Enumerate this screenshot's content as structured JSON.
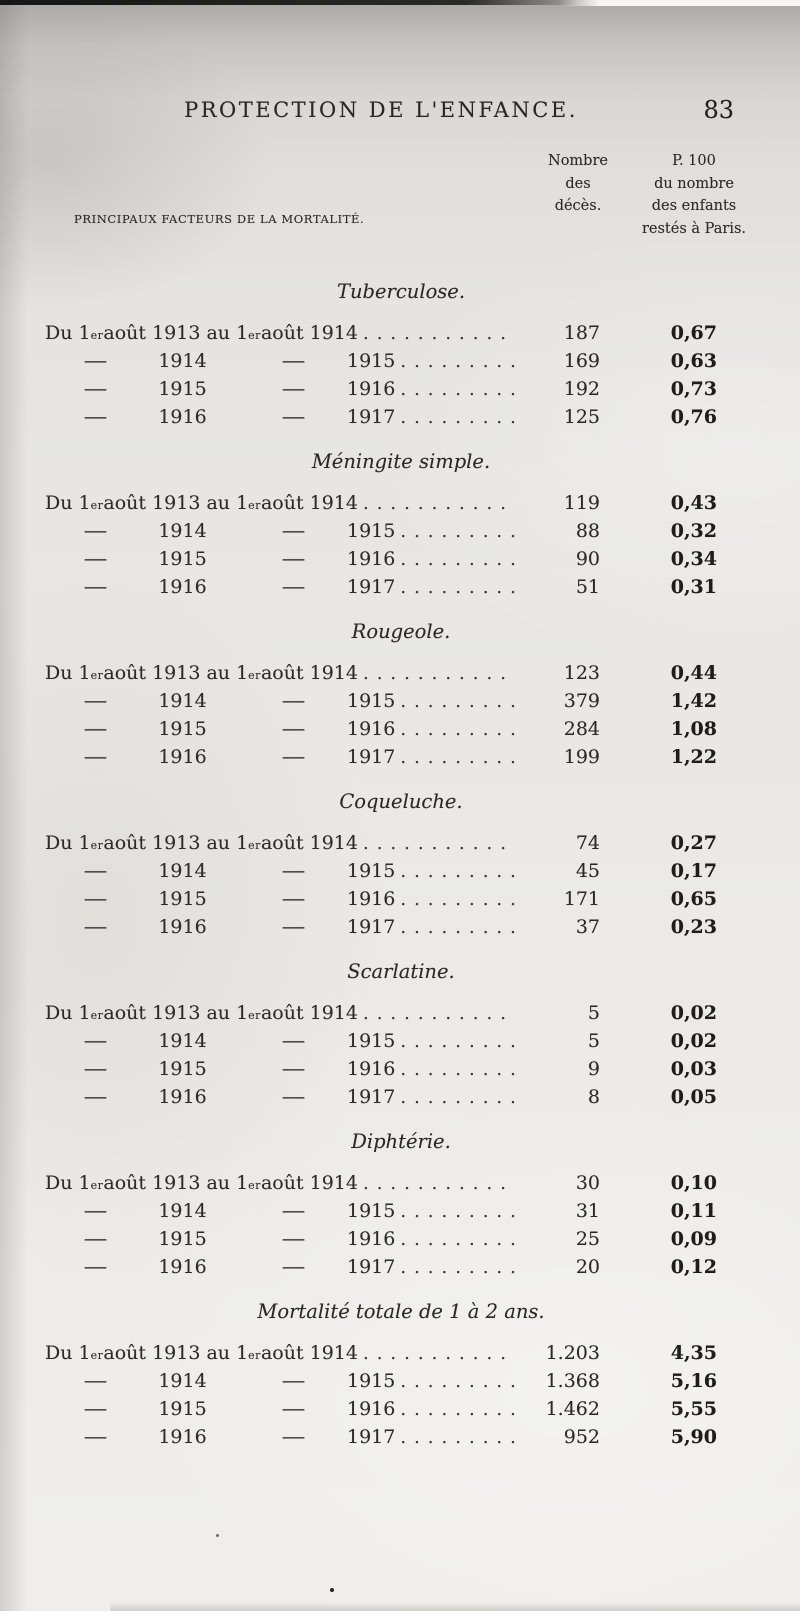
{
  "page_header": {
    "title": "PROTECTION DE L'ENFANCE.",
    "page_number": "83"
  },
  "table_header": {
    "factors_label": "PRINCIPAUX FACTEURS DE LA MORTALITÉ.",
    "deaths_col_lines": [
      "Nombre",
      "des",
      "décès."
    ],
    "rate_col_lines": [
      "P. 100",
      "du nombre",
      "des enfants",
      "restés à Paris."
    ]
  },
  "row_text": {
    "du": "Du 1",
    "sup": "er",
    "aout": " août ",
    "au": " au 1",
    "dash": "—",
    "dot_leader": "......................................"
  },
  "sections": [
    {
      "title": "Tuberculose.",
      "rows": [
        {
          "from": "1913",
          "to": "1914",
          "deaths": "187",
          "rate": "0,67"
        },
        {
          "from": "1914",
          "to": "1915",
          "deaths": "169",
          "rate": "0,63"
        },
        {
          "from": "1915",
          "to": "1916",
          "deaths": "192",
          "rate": "0,73"
        },
        {
          "from": "1916",
          "to": "1917",
          "deaths": "125",
          "rate": "0,76"
        }
      ]
    },
    {
      "title": "Méningite simple.",
      "rows": [
        {
          "from": "1913",
          "to": "1914",
          "deaths": "119",
          "rate": "0,43"
        },
        {
          "from": "1914",
          "to": "1915",
          "deaths": "88",
          "rate": "0,32"
        },
        {
          "from": "1915",
          "to": "1916",
          "deaths": "90",
          "rate": "0,34"
        },
        {
          "from": "1916",
          "to": "1917",
          "deaths": "51",
          "rate": "0,31"
        }
      ]
    },
    {
      "title": "Rougeole.",
      "rows": [
        {
          "from": "1913",
          "to": "1914",
          "deaths": "123",
          "rate": "0,44"
        },
        {
          "from": "1914",
          "to": "1915",
          "deaths": "379",
          "rate": "1,42"
        },
        {
          "from": "1915",
          "to": "1916",
          "deaths": "284",
          "rate": "1,08"
        },
        {
          "from": "1916",
          "to": "1917",
          "deaths": "199",
          "rate": "1,22"
        }
      ]
    },
    {
      "title": "Coqueluche.",
      "rows": [
        {
          "from": "1913",
          "to": "1914",
          "deaths": "74",
          "rate": "0,27"
        },
        {
          "from": "1914",
          "to": "1915",
          "deaths": "45",
          "rate": "0,17"
        },
        {
          "from": "1915",
          "to": "1916",
          "deaths": "171",
          "rate": "0,65"
        },
        {
          "from": "1916",
          "to": "1917",
          "deaths": "37",
          "rate": "0,23"
        }
      ]
    },
    {
      "title": "Scarlatine.",
      "rows": [
        {
          "from": "1913",
          "to": "1914",
          "deaths": "5",
          "rate": "0,02"
        },
        {
          "from": "1914",
          "to": "1915",
          "deaths": "5",
          "rate": "0,02"
        },
        {
          "from": "1915",
          "to": "1916",
          "deaths": "9",
          "rate": "0,03"
        },
        {
          "from": "1916",
          "to": "1917",
          "deaths": "8",
          "rate": "0,05"
        }
      ]
    },
    {
      "title": "Diphtérie.",
      "rows": [
        {
          "from": "1913",
          "to": "1914",
          "deaths": "30",
          "rate": "0,10"
        },
        {
          "from": "1914",
          "to": "1915",
          "deaths": "31",
          "rate": "0,11"
        },
        {
          "from": "1915",
          "to": "1916",
          "deaths": "25",
          "rate": "0,09"
        },
        {
          "from": "1916",
          "to": "1917",
          "deaths": "20",
          "rate": "0,12"
        }
      ]
    },
    {
      "title": "Mortalité totale de 1 à 2 ans.",
      "rows": [
        {
          "from": "1913",
          "to": "1914",
          "deaths": "1.203",
          "rate": "4,35"
        },
        {
          "from": "1914",
          "to": "1915",
          "deaths": "1.368",
          "rate": "5,16"
        },
        {
          "from": "1915",
          "to": "1916",
          "deaths": "1.462",
          "rate": "5,55"
        },
        {
          "from": "1916",
          "to": "1917",
          "deaths": "952",
          "rate": "5,90"
        }
      ]
    }
  ]
}
